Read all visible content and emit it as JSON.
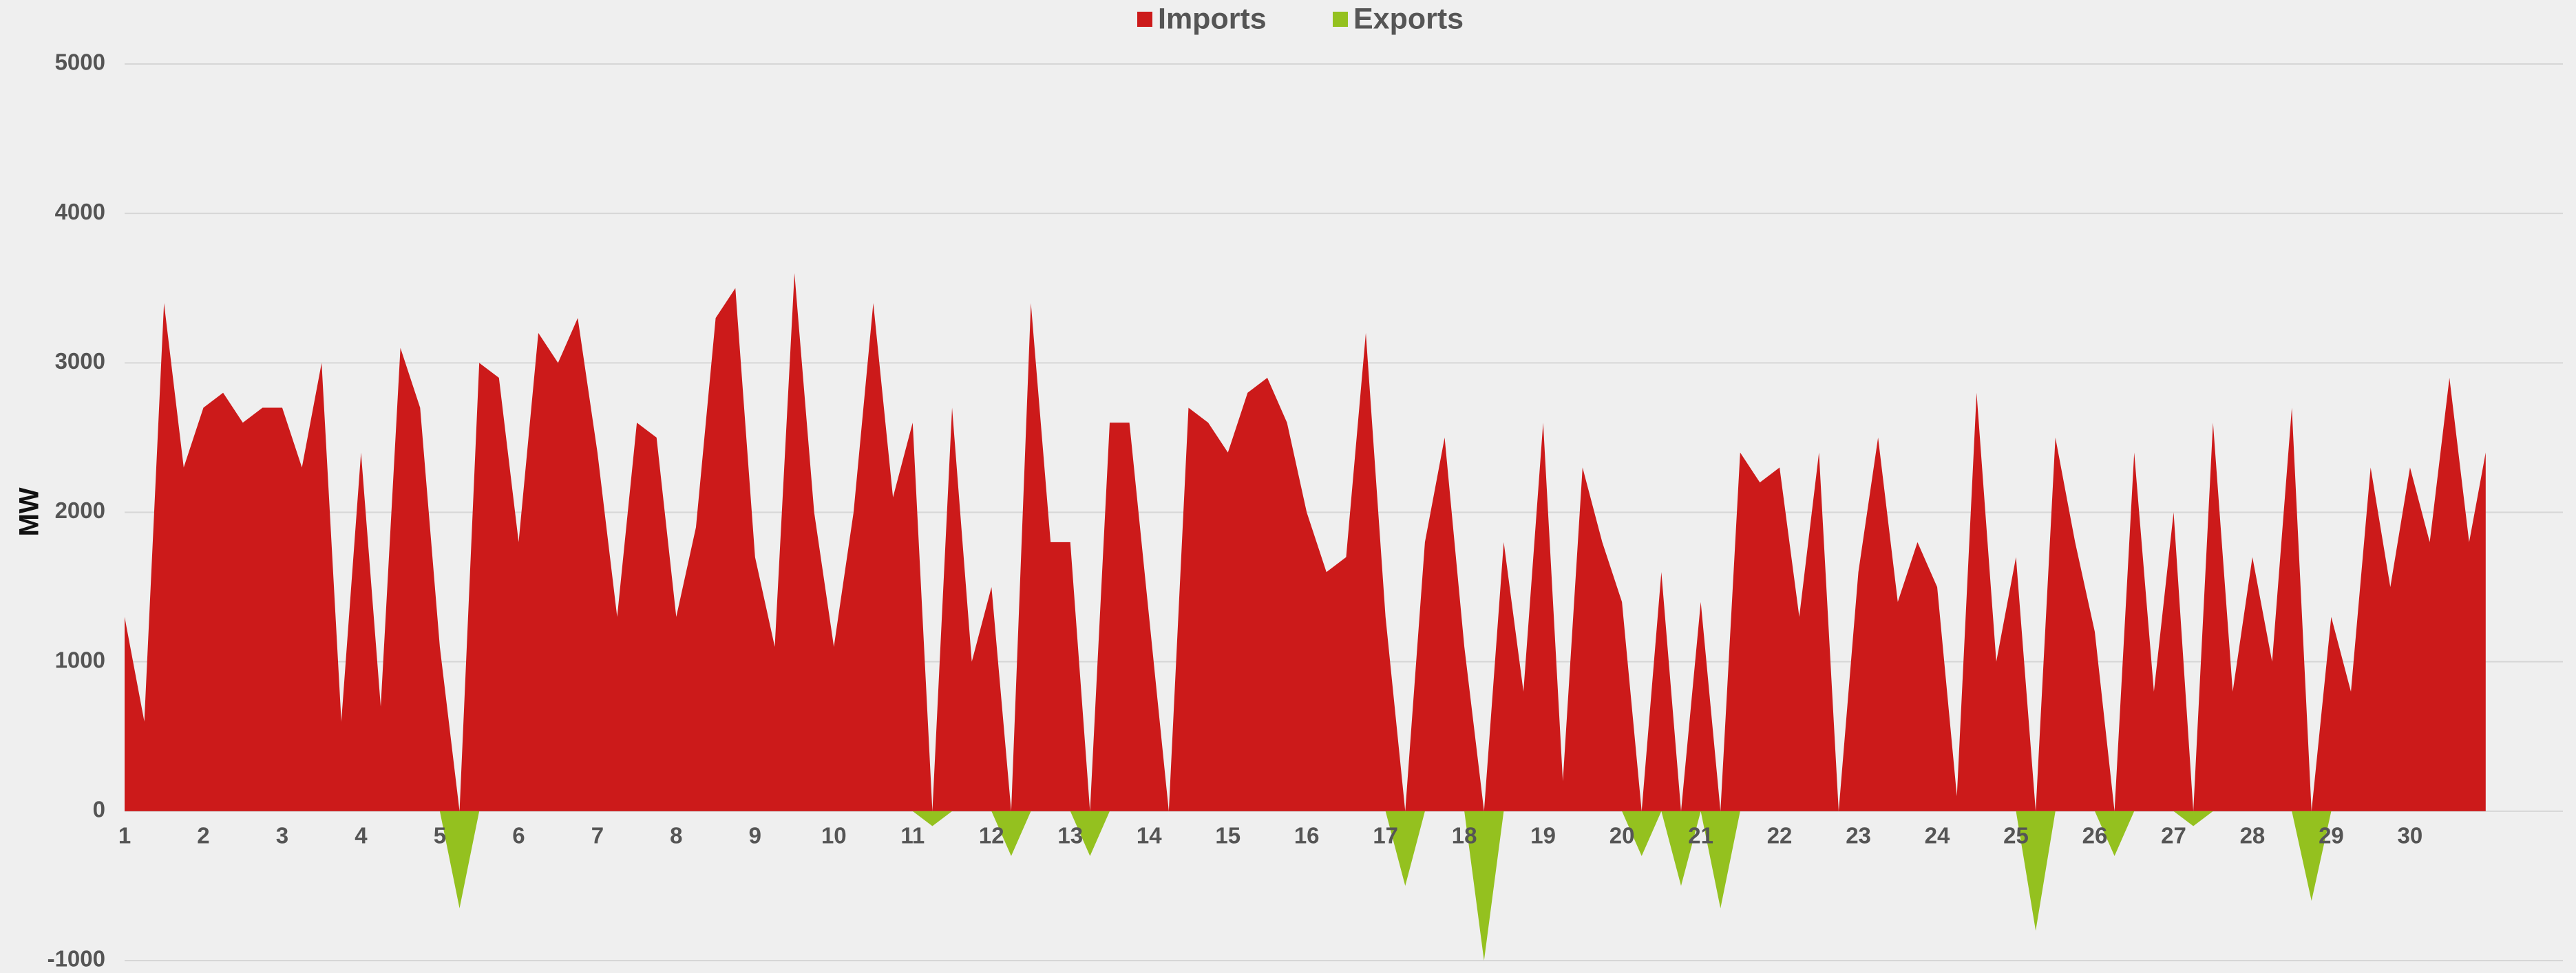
{
  "chart_data": {
    "type": "area",
    "y_label": "MW",
    "x": [
      1,
      1.25,
      1.5,
      1.75,
      2,
      2.25,
      2.5,
      2.75,
      3,
      3.25,
      3.5,
      3.75,
      4,
      4.25,
      4.5,
      4.75,
      5,
      5.25,
      5.5,
      5.75,
      6,
      6.25,
      6.5,
      6.75,
      7,
      7.25,
      7.5,
      7.75,
      8,
      8.25,
      8.5,
      8.75,
      9,
      9.25,
      9.5,
      9.75,
      10,
      10.25,
      10.5,
      10.75,
      11,
      11.25,
      11.5,
      11.75,
      12,
      12.25,
      12.5,
      12.75,
      13,
      13.25,
      13.5,
      13.75,
      14,
      14.25,
      14.5,
      14.75,
      15,
      15.25,
      15.5,
      15.75,
      16,
      16.25,
      16.5,
      16.75,
      17,
      17.25,
      17.5,
      17.75,
      18,
      18.25,
      18.5,
      18.75,
      19,
      19.25,
      19.5,
      19.75,
      20,
      20.25,
      20.5,
      20.75,
      21,
      21.25,
      21.5,
      21.75,
      22,
      22.25,
      22.5,
      22.75,
      23,
      23.25,
      23.5,
      23.75,
      24,
      24.25,
      24.5,
      24.75,
      25,
      25.25,
      25.5,
      25.75,
      26,
      26.25,
      26.5,
      26.75,
      27,
      27.25,
      27.5,
      27.75,
      28,
      28.25,
      28.5,
      28.75,
      29,
      29.25,
      29.5,
      29.75,
      30,
      30.25,
      30.5,
      30.75,
      30.96
    ],
    "series": [
      {
        "name": "Imports",
        "color": "#cc1a1a",
        "values": [
          1300,
          600,
          3400,
          2300,
          2700,
          2800,
          2600,
          2700,
          2700,
          2300,
          3000,
          600,
          2400,
          700,
          3100,
          2700,
          1100,
          0,
          3000,
          2900,
          1800,
          3200,
          3000,
          3300,
          2400,
          1300,
          2600,
          2500,
          1300,
          1900,
          3300,
          3500,
          1700,
          1100,
          3600,
          2000,
          1100,
          2000,
          3400,
          2100,
          2600,
          0,
          2700,
          1000,
          1500,
          0,
          3400,
          1800,
          1800,
          0,
          2600,
          2600,
          1300,
          0,
          2700,
          2600,
          2400,
          2800,
          2900,
          2600,
          2000,
          1600,
          1700,
          3200,
          1300,
          0,
          1800,
          2500,
          1100,
          0,
          1800,
          800,
          2600,
          200,
          2300,
          1800,
          1400,
          0,
          1600,
          0,
          1400,
          0,
          2400,
          2200,
          2300,
          1300,
          2400,
          0,
          1600,
          2500,
          1400,
          1800,
          1500,
          100,
          2800,
          1000,
          1700,
          0,
          2500,
          1800,
          1200,
          0,
          2400,
          800,
          2000,
          0,
          2600,
          800,
          1700,
          1000,
          2700,
          0,
          1300,
          800,
          2300,
          1500,
          2300,
          1800,
          2900,
          1800,
          2400
        ]
      },
      {
        "name": "Exports",
        "color": "#94c11f",
        "values": [
          0,
          0,
          0,
          0,
          0,
          0,
          0,
          0,
          0,
          0,
          0,
          0,
          0,
          0,
          0,
          0,
          0,
          -650,
          0,
          0,
          0,
          0,
          0,
          0,
          0,
          0,
          0,
          0,
          0,
          0,
          0,
          0,
          0,
          0,
          0,
          0,
          0,
          0,
          0,
          0,
          0,
          -100,
          0,
          0,
          0,
          -300,
          0,
          0,
          0,
          -300,
          0,
          0,
          0,
          0,
          0,
          0,
          0,
          0,
          0,
          0,
          0,
          0,
          0,
          0,
          0,
          -500,
          0,
          0,
          0,
          -1000,
          0,
          0,
          0,
          0,
          0,
          0,
          0,
          -300,
          0,
          -500,
          0,
          -650,
          0,
          0,
          0,
          0,
          0,
          0,
          0,
          0,
          0,
          0,
          0,
          0,
          0,
          0,
          0,
          -800,
          0,
          0,
          0,
          -300,
          0,
          0,
          0,
          -100,
          0,
          0,
          0,
          0,
          0,
          -600,
          0,
          0,
          0,
          0,
          0,
          0,
          0,
          0,
          0
        ]
      }
    ],
    "xlim": [
      1,
      31.94
    ],
    "xticks": [
      1,
      2,
      3,
      4,
      5,
      6,
      7,
      8,
      9,
      10,
      11,
      12,
      13,
      14,
      15,
      16,
      17,
      18,
      19,
      20,
      21,
      22,
      23,
      24,
      25,
      26,
      27,
      28,
      29,
      30
    ],
    "ylim": [
      -1000,
      5000
    ],
    "yticks": [
      -1000,
      0,
      1000,
      2000,
      3000,
      4000,
      5000
    ],
    "grid": true,
    "legend": "top"
  }
}
